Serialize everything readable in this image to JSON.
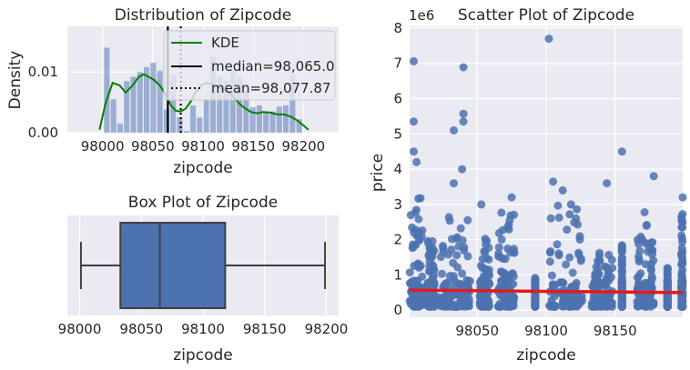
{
  "chart_data": [
    {
      "type": "histogram",
      "title": "Distribution of Zipcode",
      "xlabel": "zipcode",
      "ylabel": "Density",
      "xlim": [
        97965,
        98235
      ],
      "ylim": [
        0,
        0.0175
      ],
      "xticks": [
        "98000",
        "98050",
        "98100",
        "98150",
        "98200"
      ],
      "yticks": [
        "0.00",
        "0.01"
      ],
      "bins": [
        {
          "x0": 98001,
          "x1": 98007.6,
          "density": 0.014
        },
        {
          "x0": 98007.6,
          "x1": 98014.2,
          "density": 0.0055
        },
        {
          "x0": 98014.2,
          "x1": 98020.8,
          "density": 0.0015
        },
        {
          "x0": 98020.8,
          "x1": 98027.4,
          "density": 0.0085
        },
        {
          "x0": 98027.4,
          "x1": 98034,
          "density": 0.0092
        },
        {
          "x0": 98034,
          "x1": 98040.6,
          "density": 0.01
        },
        {
          "x0": 98040.6,
          "x1": 98047.2,
          "density": 0.0108
        },
        {
          "x0": 98047.2,
          "x1": 98053.8,
          "density": 0.0115
        },
        {
          "x0": 98053.8,
          "x1": 98060.4,
          "density": 0.0102
        },
        {
          "x0": 98060.4,
          "x1": 98067,
          "density": 0.0038
        },
        {
          "x0": 98067,
          "x1": 98073.6,
          "density": 0.0095
        },
        {
          "x0": 98073.6,
          "x1": 98080.2,
          "density": 0.0025
        },
        {
          "x0": 98080.2,
          "x1": 98086.8,
          "density": 0.0003
        },
        {
          "x0": 98086.8,
          "x1": 98093.4,
          "density": 0.0045
        },
        {
          "x0": 98093.4,
          "x1": 98100,
          "density": 0.0025
        },
        {
          "x0": 98100,
          "x1": 98106.6,
          "density": 0.0055
        },
        {
          "x0": 98106.6,
          "x1": 98113.2,
          "density": 0.0125
        },
        {
          "x0": 98113.2,
          "x1": 98119.8,
          "density": 0.0092
        },
        {
          "x0": 98119.8,
          "x1": 98126.4,
          "density": 0.0085
        },
        {
          "x0": 98126.4,
          "x1": 98133,
          "density": 0.0102
        },
        {
          "x0": 98133,
          "x1": 98139.6,
          "density": 0.0092
        },
        {
          "x0": 98139.6,
          "x1": 98146.2,
          "density": 0.0068
        },
        {
          "x0": 98146.2,
          "x1": 98152.8,
          "density": 0.0042
        },
        {
          "x0": 98152.8,
          "x1": 98159.4,
          "density": 0.0045
        },
        {
          "x0": 98159.4,
          "x1": 98166,
          "density": 0.0035
        },
        {
          "x0": 98166,
          "x1": 98172.6,
          "density": 0.0035
        },
        {
          "x0": 98172.6,
          "x1": 98179.2,
          "density": 0.0043
        },
        {
          "x0": 98179.2,
          "x1": 98185.8,
          "density": 0.0045
        },
        {
          "x0": 98185.8,
          "x1": 98192.4,
          "density": 0.0095
        },
        {
          "x0": 98192.4,
          "x1": 98199,
          "density": 0.0022
        }
      ],
      "kde": {
        "name": "KDE",
        "x": [
          97997,
          98003,
          98010,
          98017,
          98023,
          98030,
          98036,
          98041,
          98046,
          98052,
          98058,
          98063,
          98068,
          98073,
          98078,
          98083,
          98088,
          98093,
          98098,
          98103,
          98108,
          98114,
          98120,
          98126,
          98131,
          98136,
          98142,
          98148,
          98154,
          98160,
          98167,
          98174,
          98181,
          98188,
          98194,
          98200,
          98205
        ],
        "y": [
          0.0005,
          0.0048,
          0.0082,
          0.0078,
          0.0066,
          0.0078,
          0.0092,
          0.0096,
          0.0092,
          0.0086,
          0.0076,
          0.0062,
          0.0045,
          0.0036,
          0.0035,
          0.004,
          0.0052,
          0.0068,
          0.0078,
          0.0082,
          0.008,
          0.0076,
          0.0072,
          0.0066,
          0.0058,
          0.0048,
          0.004,
          0.0034,
          0.0032,
          0.0034,
          0.0033,
          0.003,
          0.003,
          0.0026,
          0.002,
          0.0012,
          0.0005
        ]
      },
      "median": 98065,
      "mean": 98077.87,
      "legend": [
        {
          "label": "KDE",
          "color": "#008000",
          "style": "solid"
        },
        {
          "label": "median=98,065.0",
          "color": "#000000",
          "style": "solid"
        },
        {
          "label": "mean=98,077.87",
          "color": "#000000",
          "style": "dotted"
        }
      ],
      "legend_position": "top-right",
      "bar_color": "#4c72b0",
      "kde_color": "#008000"
    },
    {
      "type": "box",
      "title": "Box Plot of Zipcode",
      "xlabel": "zipcode",
      "xlim": [
        97990,
        98210
      ],
      "xticks": [
        "98000",
        "98050",
        "98100",
        "98150",
        "98200"
      ],
      "whisker_low": 98001,
      "q1": 98033,
      "median": 98065,
      "q3": 98118,
      "whisker_high": 98199,
      "box_color": "#4c72b0"
    },
    {
      "type": "scatter",
      "title": "Scatter Plot of Zipcode",
      "xlabel": "zipcode",
      "ylabel": "price",
      "exponent_label": "1e6",
      "xlim": [
        98001,
        98199
      ],
      "ylim": [
        -0.2,
        8.05
      ],
      "xticks": [
        "98050",
        "98100",
        "98150"
      ],
      "yticks": [
        "0",
        "1",
        "2",
        "3",
        "4",
        "5",
        "6",
        "7",
        "8"
      ],
      "point_color": "#4c72b0",
      "regression_color": "#e41a1c",
      "regression": {
        "x": [
          98001,
          98199
        ],
        "y": [
          0.57,
          0.5
        ]
      },
      "outliers": [
        {
          "x": 98004,
          "y": 7.06
        },
        {
          "x": 98004,
          "y": 5.35
        },
        {
          "x": 98004,
          "y": 4.5
        },
        {
          "x": 98006,
          "y": 4.2
        },
        {
          "x": 98040,
          "y": 6.89
        },
        {
          "x": 98040,
          "y": 5.57
        },
        {
          "x": 98040,
          "y": 5.35
        },
        {
          "x": 98039,
          "y": 4.0
        },
        {
          "x": 98033,
          "y": 5.1
        },
        {
          "x": 98033,
          "y": 3.6
        },
        {
          "x": 98102,
          "y": 7.7
        },
        {
          "x": 98105,
          "y": 3.65
        },
        {
          "x": 98112,
          "y": 3.4
        },
        {
          "x": 98155,
          "y": 4.5
        },
        {
          "x": 98144,
          "y": 3.6
        },
        {
          "x": 98178,
          "y": 3.8
        },
        {
          "x": 98199,
          "y": 3.2
        },
        {
          "x": 98075,
          "y": 3.2
        },
        {
          "x": 98053,
          "y": 3.0
        },
        {
          "x": 98118,
          "y": 3.0
        }
      ],
      "clusters": [
        {
          "x0": 98001,
          "x1": 98011,
          "ymax": 3.2
        },
        {
          "x0": 98014,
          "x1": 98019,
          "ymax": 2.0
        },
        {
          "x0": 98022,
          "x1": 98045,
          "ymax": 2.8
        },
        {
          "x0": 98052,
          "x1": 98059,
          "ymax": 2.2
        },
        {
          "x0": 98065,
          "x1": 98077,
          "ymax": 3.0
        },
        {
          "x0": 98092,
          "x1": 98092,
          "ymax": 1.0
        },
        {
          "x0": 98102,
          "x1": 98126,
          "ymax": 3.0
        },
        {
          "x0": 98133,
          "x1": 98148,
          "ymax": 2.0
        },
        {
          "x0": 98155,
          "x1": 98155,
          "ymax": 2.0
        },
        {
          "x0": 98166,
          "x1": 98178,
          "ymax": 2.8
        },
        {
          "x0": 98188,
          "x1": 98188,
          "ymax": 1.2
        },
        {
          "x0": 98198,
          "x1": 98199,
          "ymax": 2.8
        }
      ]
    }
  ]
}
